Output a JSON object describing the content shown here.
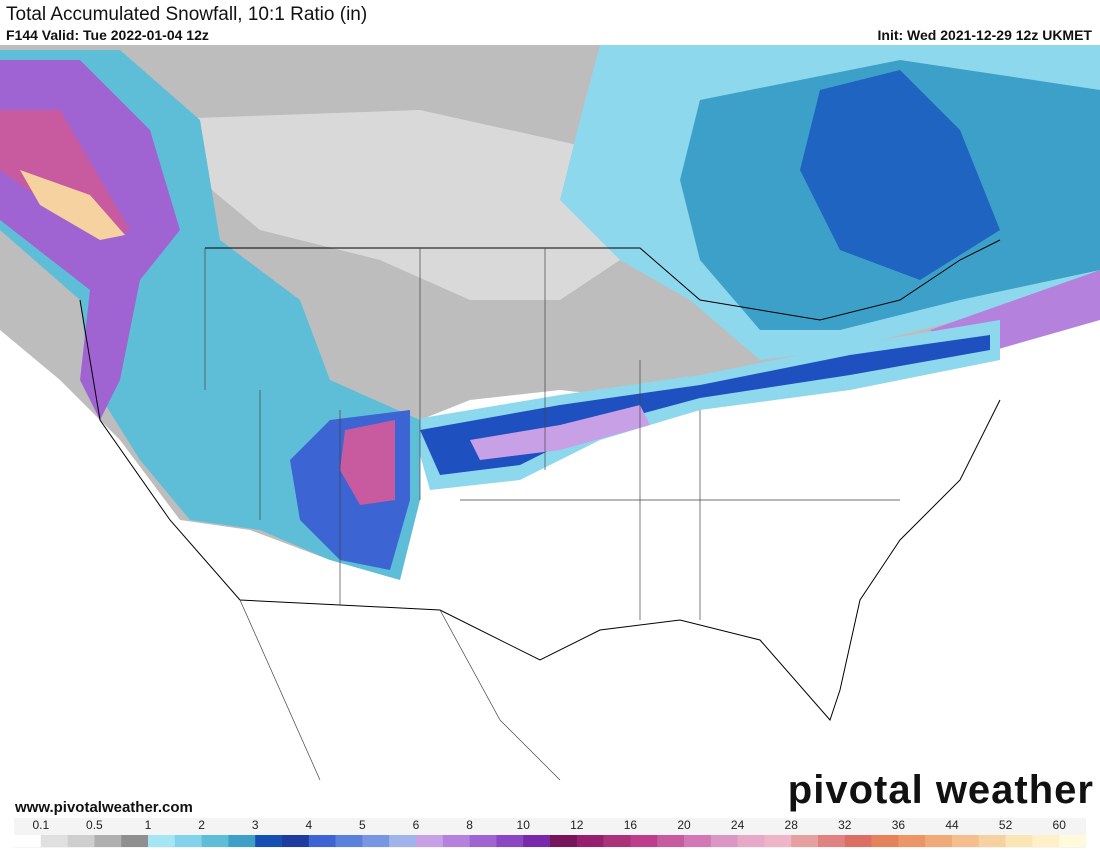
{
  "header": {
    "title": "Total Accumulated Snowfall, 10:1 Ratio (in)",
    "valid": "F144 Valid: Tue 2022-01-04 12z",
    "init": "Init: Wed 2021-12-29 12z UKMET"
  },
  "footer": {
    "website": "www.pivotalweather.com",
    "watermark": "pivotal weather"
  },
  "legend": {
    "levels": [
      0.1,
      0.5,
      1,
      2,
      3,
      4,
      5,
      6,
      8,
      10,
      12,
      16,
      20,
      24,
      28,
      32,
      36,
      44,
      52,
      60
    ],
    "colors": [
      "#ffffff",
      "#e0e0e0",
      "#cfcfcf",
      "#b0b0b0",
      "#8f8f8f",
      "#a5e6f5",
      "#82d2eb",
      "#5fbed7",
      "#3ca0c8",
      "#1450b4",
      "#1e3ca0",
      "#3c64d2",
      "#5a82dc",
      "#7896e1",
      "#a0b4eb",
      "#c8a0e6",
      "#b482dc",
      "#a064d2",
      "#8c46c3",
      "#7828aa",
      "#78145a",
      "#961e6e",
      "#aa3278",
      "#be3c8c",
      "#c85aa0",
      "#d278b4",
      "#dc96c3",
      "#e6aac8",
      "#f0b4c8",
      "#e6a0a0",
      "#e08282",
      "#dc6e64",
      "#e6825a",
      "#eb9664",
      "#f0aa78",
      "#f5be8c",
      "#f5d2a0",
      "#fae6b4",
      "#fff0c8",
      "#fffadc"
    ]
  }
}
